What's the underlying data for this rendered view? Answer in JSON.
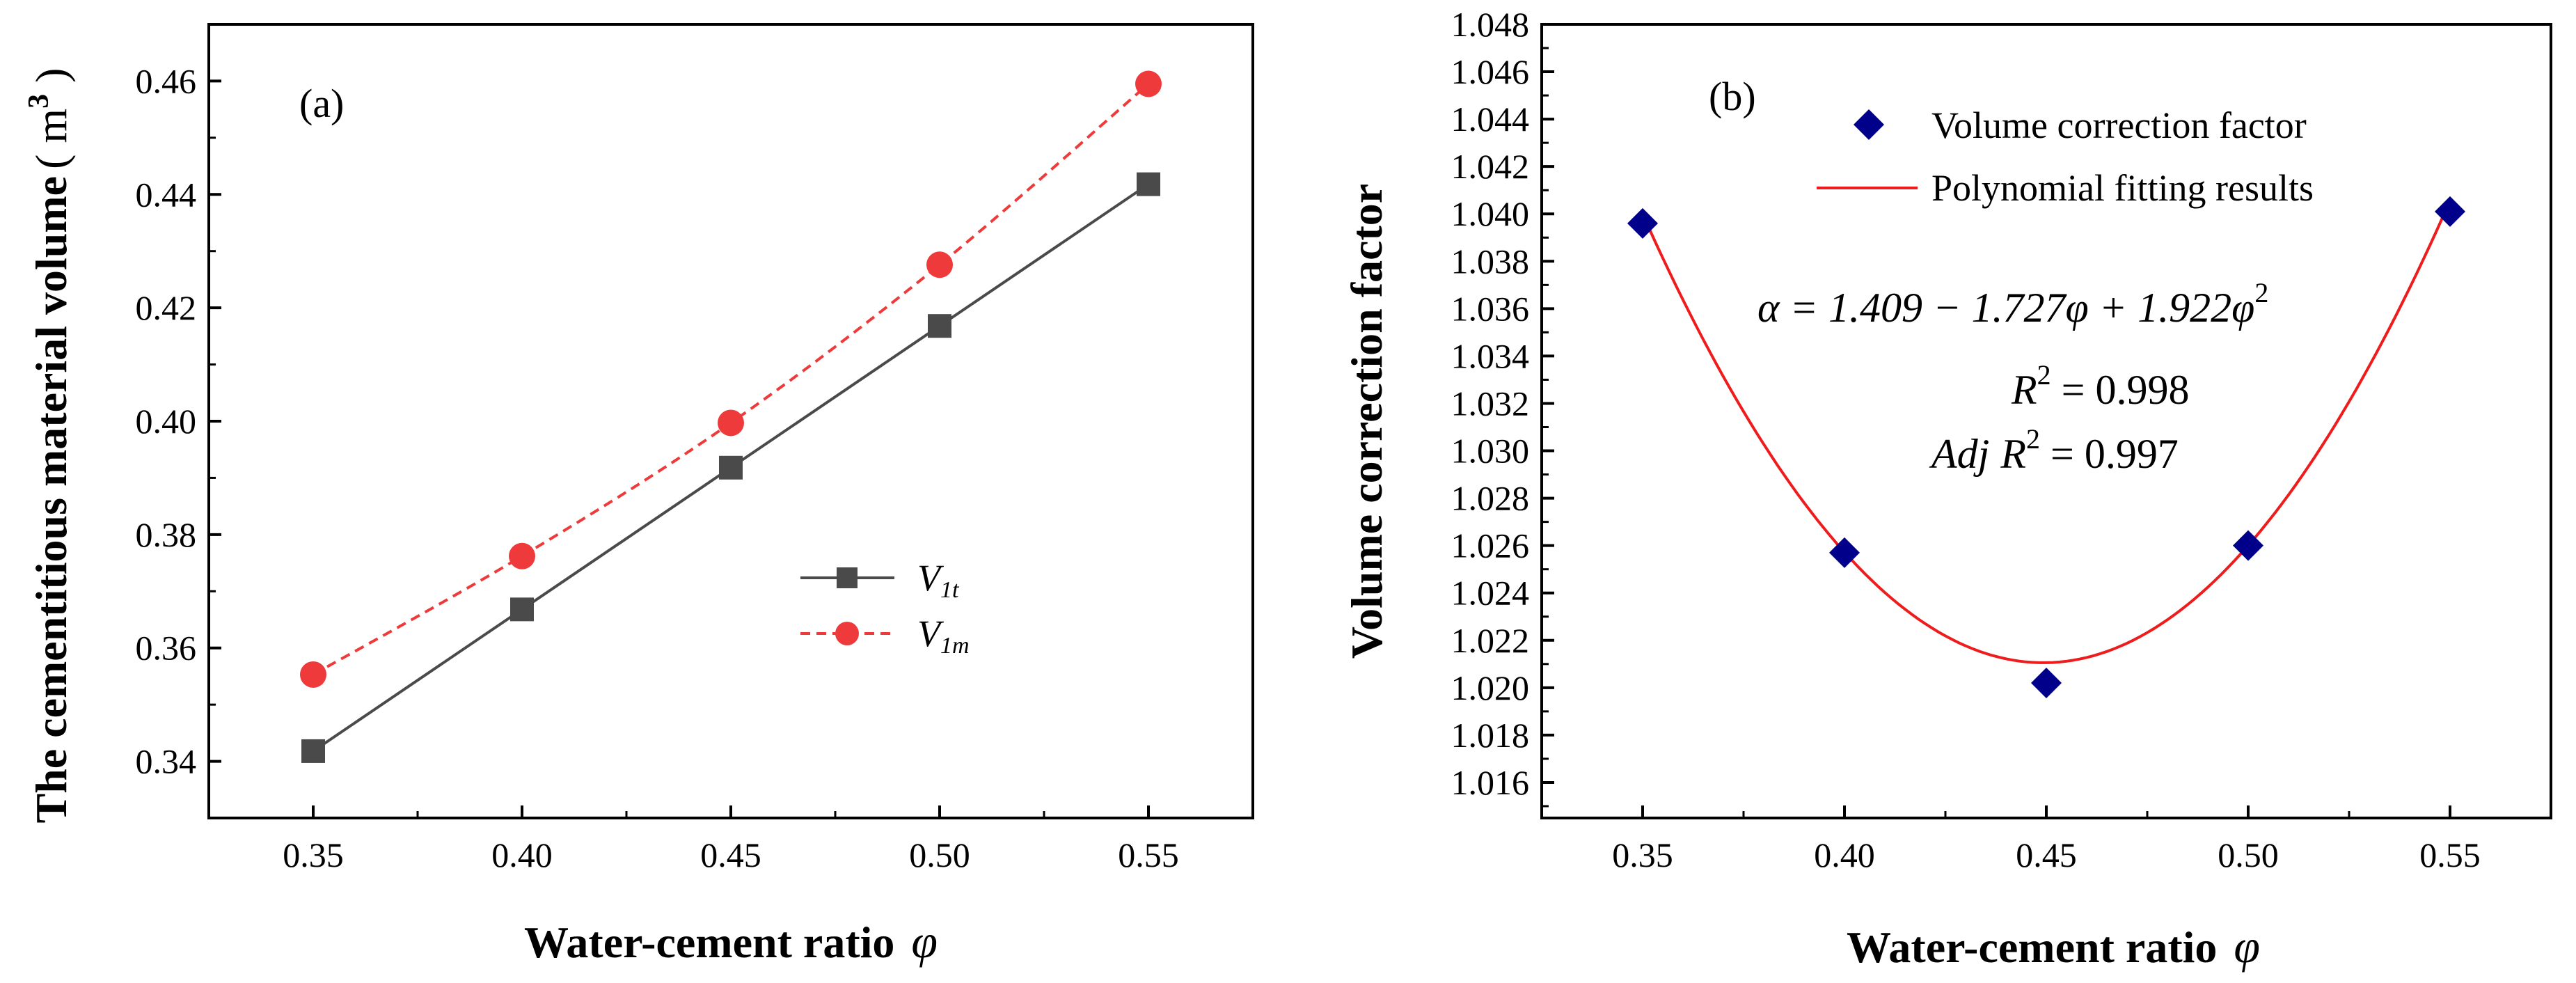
{
  "chart_data": [
    {
      "type": "line",
      "panel_label": "(a)",
      "title": "",
      "xlabel": "Water-cement ratio",
      "xlabel_symbol": "φ",
      "ylabel": "The cementitious material volume",
      "ylabel_unit_open": "( m",
      "ylabel_unit_sup": "3",
      "ylabel_unit_close": " )",
      "xlim": [
        0.325,
        0.575
      ],
      "ylim": [
        0.33,
        0.47
      ],
      "xticks": [
        "0.35",
        "0.40",
        "0.45",
        "0.50",
        "0.55"
      ],
      "yticks": [
        "0.34",
        "0.36",
        "0.38",
        "0.40",
        "0.42",
        "0.44",
        "0.46"
      ],
      "grid": false,
      "legend_position": "center-right",
      "x": [
        0.35,
        0.4,
        0.45,
        0.5,
        0.55
      ],
      "series": [
        {
          "name": "V1t",
          "label_main": "V",
          "label_sub": "1t",
          "values": [
            0.3418,
            0.3668,
            0.3918,
            0.4168,
            0.4418
          ],
          "color": "#4a4a4a",
          "marker": "square",
          "line": "solid"
        },
        {
          "name": "V1m",
          "label_main": "V",
          "label_sub": "1m",
          "values": [
            0.3553,
            0.3762,
            0.3997,
            0.4276,
            0.4595
          ],
          "color": "#ee3a3a",
          "marker": "circle",
          "line": "dashed"
        }
      ]
    },
    {
      "type": "scatter",
      "panel_label": "(b)",
      "title": "",
      "xlabel": "Water-cement ratio",
      "xlabel_symbol": "φ",
      "ylabel": "Volume correction factor",
      "xlim": [
        0.325,
        0.575
      ],
      "ylim": [
        1.0145,
        1.048
      ],
      "xticks": [
        "0.35",
        "0.40",
        "0.45",
        "0.50",
        "0.55"
      ],
      "yticks": [
        "1.016",
        "1.018",
        "1.020",
        "1.022",
        "1.024",
        "1.026",
        "1.028",
        "1.030",
        "1.032",
        "1.034",
        "1.036",
        "1.038",
        "1.040",
        "1.042",
        "1.044",
        "1.046",
        "1.048"
      ],
      "grid": false,
      "legend_position": "top-right",
      "x": [
        0.35,
        0.4,
        0.45,
        0.5,
        0.55
      ],
      "series": [
        {
          "name": "Volume correction factor",
          "values": [
            1.0396,
            1.0257,
            1.0202,
            1.026,
            1.0401
          ],
          "color": "#00008b",
          "marker": "diamond"
        },
        {
          "name": "Polynomial fitting results",
          "type": "fit",
          "coefficients": [
            1.409,
            -1.727,
            1.922
          ],
          "color": "#ee1c1c"
        }
      ],
      "annotations": {
        "equation": "α = 1.409 − 1.727φ + 1.922φ",
        "equation_sup": "2",
        "r2_label": "R",
        "r2_sup": "2",
        "r2_value": " = 0.998",
        "adj_label": "Adj",
        "adj_r_label": "R",
        "adj_sup": "2",
        "adj_value": " = 0.997"
      }
    }
  ],
  "colors": {
    "axis": "#000000",
    "v1t": "#4a4a4a",
    "v1m": "#ee3a3a",
    "diamond": "#00008b",
    "fit": "#ee1c1c"
  }
}
